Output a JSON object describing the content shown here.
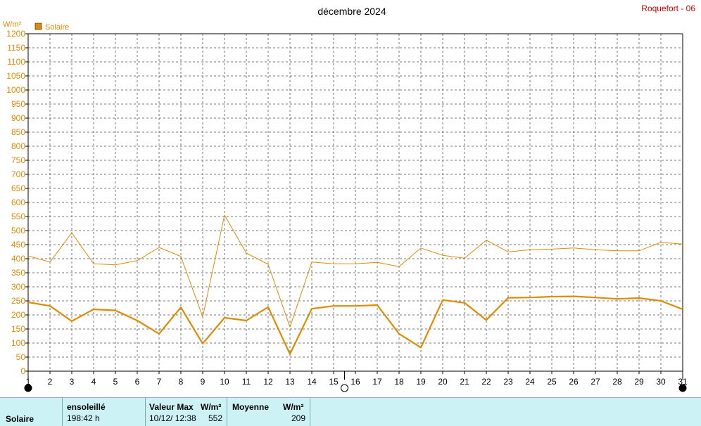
{
  "header": {
    "title": "décembre 2024",
    "station": "Roquefort - 06"
  },
  "chart_data": {
    "type": "line",
    "title": "décembre 2024",
    "ylabel": "W/m²",
    "ylim": [
      0,
      1200
    ],
    "yticks": [
      0,
      50,
      100,
      150,
      200,
      250,
      300,
      350,
      400,
      450,
      500,
      550,
      600,
      650,
      700,
      750,
      800,
      850,
      900,
      950,
      1000,
      1050,
      1100,
      1150,
      1200
    ],
    "x": [
      1,
      2,
      3,
      4,
      5,
      6,
      7,
      8,
      9,
      10,
      11,
      12,
      13,
      14,
      15,
      16,
      17,
      18,
      19,
      20,
      21,
      22,
      23,
      24,
      25,
      26,
      27,
      28,
      29,
      30,
      31
    ],
    "legend": [
      "Solaire"
    ],
    "series": [
      {
        "name": "Solaire",
        "kind": "max",
        "color": "#e08a00",
        "values": [
          410,
          388,
          492,
          382,
          378,
          393,
          440,
          408,
          193,
          555,
          420,
          380,
          157,
          388,
          382,
          382,
          387,
          372,
          438,
          412,
          402,
          466,
          424,
          432,
          434,
          438,
          432,
          428,
          428,
          458,
          452
        ]
      },
      {
        "name": "Solaire",
        "kind": "mean",
        "color": "#e08a00",
        "values": [
          245,
          232,
          178,
          220,
          216,
          180,
          133,
          227,
          98,
          190,
          180,
          228,
          61,
          222,
          232,
          232,
          235,
          133,
          84,
          253,
          243,
          182,
          261,
          262,
          265,
          266,
          262,
          257,
          260,
          250,
          220
        ]
      }
    ],
    "moon_markers": [
      {
        "day": 1,
        "phase": "new"
      },
      {
        "day": 15.5,
        "phase": "full"
      },
      {
        "day": 31,
        "phase": "new"
      }
    ],
    "grid": true
  },
  "stats": {
    "row_label": "Solaire",
    "sunshine": {
      "label": "ensoleillé",
      "value": "198:42 h"
    },
    "max": {
      "label": "Valeur Max",
      "unit": "W/m²",
      "date": "10/12/  12:38",
      "value": "552"
    },
    "mean": {
      "label": "Moyenne",
      "unit": "W/m²",
      "value": "209"
    }
  }
}
